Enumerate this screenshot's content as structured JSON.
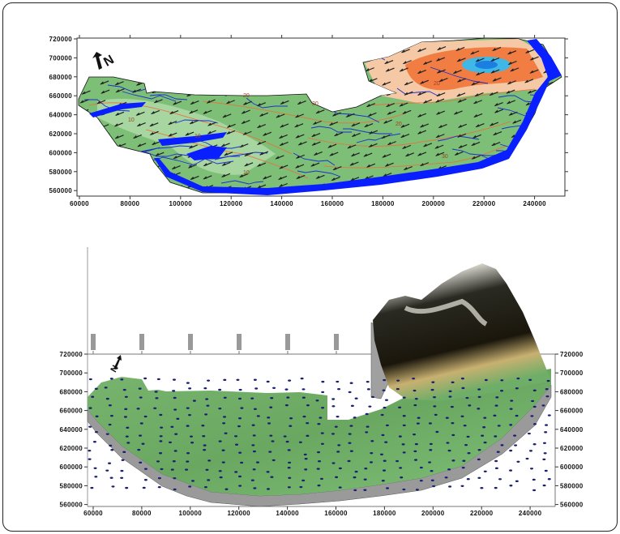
{
  "top_map": {
    "x_ticks": [
      "60000",
      "80000",
      "100000",
      "120000",
      "140000",
      "160000",
      "180000",
      "200000",
      "220000",
      "240000"
    ],
    "y_ticks": [
      "720000",
      "700000",
      "680000",
      "660000",
      "640000",
      "620000",
      "600000",
      "580000",
      "560000"
    ],
    "north_label": "N",
    "contour_labels": [
      "10",
      "10",
      "10",
      "20",
      "20",
      "20",
      "30",
      "20"
    ],
    "colors": {
      "land": "#7dbf76",
      "light_land": "#a7d6a0",
      "river": "#0a1fff",
      "contour": "#f06a3a",
      "stream": "#1a2fd0",
      "high": "#f07030",
      "peak": "#3fb8e8"
    }
  },
  "bottom_surface": {
    "x_ticks": [
      "60000",
      "80000",
      "100000",
      "120000",
      "140000",
      "160000",
      "180000",
      "200000",
      "220000",
      "240000"
    ],
    "y_ticks": [
      "720000",
      "700000",
      "680000",
      "660000",
      "640000",
      "620000",
      "600000",
      "580000",
      "560000"
    ],
    "north_label": "N",
    "colors": {
      "surface": "#6fae68",
      "skirt": "#9a9a9a",
      "mountain": "#1c1a12",
      "peak": "#3a8fd0"
    }
  }
}
